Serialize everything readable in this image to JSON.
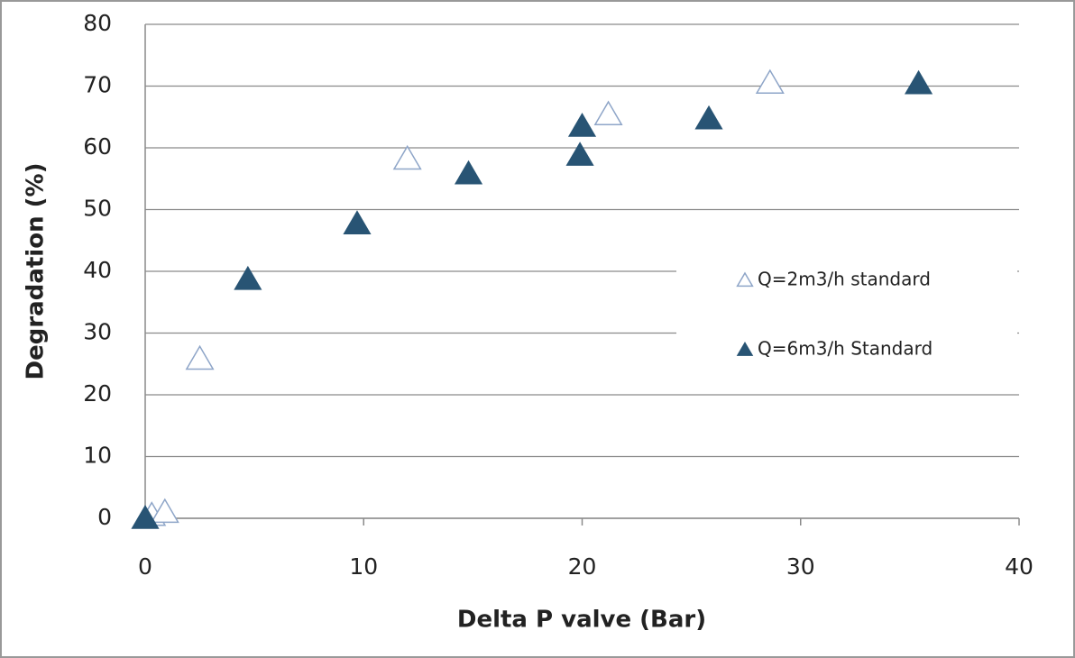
{
  "chart_data": {
    "type": "scatter",
    "x_label": "Delta P valve (Bar)",
    "y_label": "Degradation (%)",
    "series": [
      {
        "name": "Q=2m3/h standard",
        "color": "#8ea5c8",
        "filled": false,
        "x": [
          0.3,
          0.9,
          2.5,
          12,
          21.2,
          28.6
        ],
        "values": [
          0.5,
          1,
          25.8,
          58.2,
          65.4,
          70.5
        ]
      },
      {
        "name": "Q=6m3/h Standard",
        "color": "#285474",
        "filled": true,
        "x": [
          0,
          4.7,
          9.7,
          14.8,
          20,
          19.9,
          25.8,
          35.4
        ],
        "values": [
          0,
          38.7,
          47.7,
          55.8,
          63.5,
          58.8,
          64.7,
          70.4
        ]
      }
    ],
    "xlim": [
      0,
      40
    ],
    "xticks": [
      0,
      10,
      20,
      30,
      40
    ],
    "ylim": [
      0,
      80
    ],
    "yticks": [
      0,
      10,
      20,
      30,
      40,
      50,
      60,
      70,
      80
    ],
    "grid": true,
    "legend": "right"
  }
}
